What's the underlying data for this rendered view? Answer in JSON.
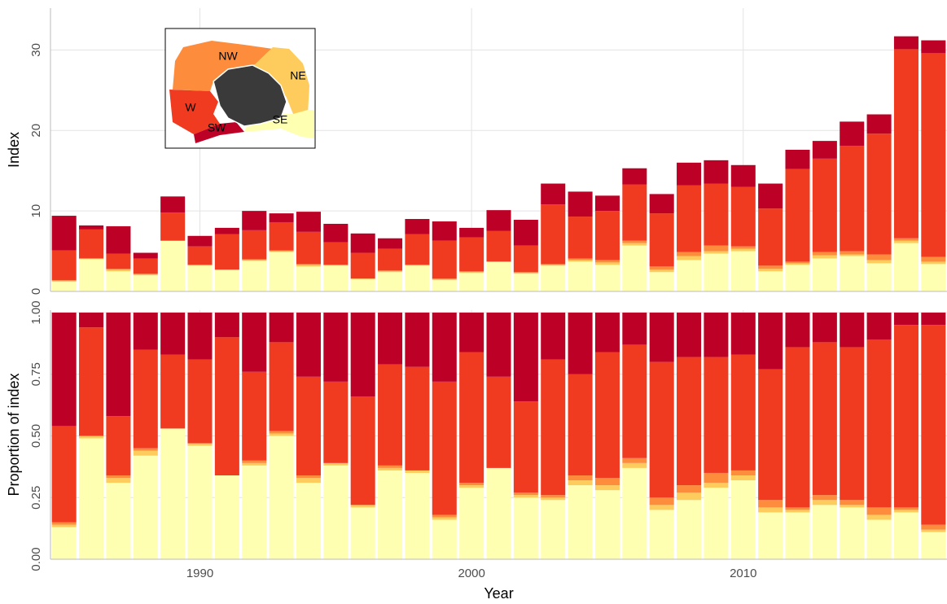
{
  "chart_data": [
    {
      "type": "bar",
      "stacked": true,
      "ylabel": "Index",
      "x": [
        1985,
        1986,
        1987,
        1988,
        1989,
        1990,
        1991,
        1992,
        1993,
        1994,
        1995,
        1996,
        1997,
        1998,
        1999,
        2000,
        2001,
        2002,
        2003,
        2004,
        2005,
        2006,
        2007,
        2008,
        2009,
        2010,
        2011,
        2012,
        2013,
        2014,
        2015,
        2016,
        2017
      ],
      "xlim": [
        1984.5,
        2017.5
      ],
      "ylim": [
        0,
        35.2
      ],
      "yticks": [
        0,
        10,
        20,
        30
      ],
      "grid": true,
      "series": [
        {
          "name": "SE",
          "color": "#ffffb2",
          "values": [
            1.2,
            4.0,
            2.5,
            2.0,
            6.3,
            3.2,
            2.7,
            3.8,
            4.9,
            3.1,
            3.2,
            1.5,
            2.4,
            3.2,
            1.4,
            2.3,
            3.7,
            2.2,
            3.2,
            3.7,
            3.3,
            5.7,
            2.4,
            3.9,
            4.7,
            5.0,
            2.5,
            3.3,
            4.1,
            4.4,
            3.5,
            6.0,
            3.4
          ]
        },
        {
          "name": "NE",
          "color": "#fecc5c",
          "values": [
            0.1,
            0.1,
            0.2,
            0.1,
            0,
            0.1,
            0,
            0.1,
            0.1,
            0.2,
            0.1,
            0.1,
            0.1,
            0.1,
            0.1,
            0.1,
            0,
            0.1,
            0.1,
            0.2,
            0.3,
            0.3,
            0.3,
            0.5,
            0.3,
            0.3,
            0.3,
            0.2,
            0.4,
            0.2,
            0.4,
            0.3,
            0.3
          ]
        },
        {
          "name": "NW",
          "color": "#fd8d3c",
          "values": [
            0.1,
            0,
            0.1,
            0.1,
            0,
            0,
            0,
            0.1,
            0.1,
            0.1,
            0,
            0,
            0.1,
            0,
            0.1,
            0.1,
            0,
            0.1,
            0.1,
            0.2,
            0.3,
            0.3,
            0.4,
            0.5,
            0.7,
            0.3,
            0.4,
            0.2,
            0.4,
            0.4,
            0.7,
            0.3,
            0.6
          ]
        },
        {
          "name": "W",
          "color": "#f03b20",
          "values": [
            3.7,
            3.6,
            1.9,
            1.9,
            3.5,
            2.3,
            4.4,
            3.6,
            3.5,
            4.0,
            2.8,
            3.2,
            2.7,
            3.8,
            4.7,
            4.2,
            3.8,
            3.3,
            7.4,
            5.2,
            6.1,
            7.0,
            6.6,
            8.3,
            7.7,
            7.4,
            7.1,
            11.5,
            11.6,
            13.1,
            15.0,
            23.5,
            25.3
          ]
        },
        {
          "name": "SW",
          "color": "#bd0026",
          "values": [
            4.3,
            0.5,
            3.4,
            0.7,
            2.0,
            1.3,
            0.8,
            2.4,
            1.1,
            2.5,
            2.3,
            2.4,
            1.3,
            1.9,
            2.4,
            1.2,
            2.6,
            3.2,
            2.6,
            3.1,
            1.9,
            2.0,
            2.4,
            2.8,
            2.9,
            2.7,
            3.1,
            2.4,
            2.2,
            3.0,
            2.4,
            1.6,
            1.6
          ]
        }
      ]
    },
    {
      "type": "bar",
      "stacked": true,
      "ylabel": "Proportion of index",
      "xlabel": "Year",
      "x": [
        1985,
        1986,
        1987,
        1988,
        1989,
        1990,
        1991,
        1992,
        1993,
        1994,
        1995,
        1996,
        1997,
        1998,
        1999,
        2000,
        2001,
        2002,
        2003,
        2004,
        2005,
        2006,
        2007,
        2008,
        2009,
        2010,
        2011,
        2012,
        2013,
        2014,
        2015,
        2016,
        2017
      ],
      "xlim": [
        1984.5,
        2017.5
      ],
      "xticks": [
        1990,
        2000,
        2010
      ],
      "ylim": [
        0,
        1.01
      ],
      "yticks": [
        {
          "value": 0,
          "label": "0.00"
        },
        {
          "value": 0.25,
          "label": "0.25"
        },
        {
          "value": 0.5,
          "label": "0.50"
        },
        {
          "value": 0.75,
          "label": "0.75"
        },
        {
          "value": 1,
          "label": "1.00"
        }
      ],
      "grid": true,
      "series": [
        {
          "color": "#ffffb2",
          "values": [
            0.13,
            0.49,
            0.31,
            0.42,
            0.53,
            0.46,
            0.34,
            0.38,
            0.5,
            0.31,
            0.38,
            0.21,
            0.36,
            0.35,
            0.16,
            0.29,
            0.37,
            0.25,
            0.24,
            0.3,
            0.28,
            0.37,
            0.2,
            0.24,
            0.29,
            0.32,
            0.19,
            0.19,
            0.22,
            0.21,
            0.16,
            0.19,
            0.11
          ]
        },
        {
          "color": "#fecc5c",
          "values": [
            0.01,
            0.01,
            0.02,
            0.02,
            0,
            0.01,
            0,
            0.01,
            0.01,
            0.02,
            0.01,
            0.01,
            0.01,
            0.01,
            0.01,
            0.01,
            0,
            0.01,
            0.01,
            0.02,
            0.02,
            0.02,
            0.02,
            0.03,
            0.02,
            0.02,
            0.02,
            0.01,
            0.02,
            0.01,
            0.02,
            0.01,
            0.01
          ]
        },
        {
          "color": "#fd8d3c",
          "values": [
            0.01,
            0,
            0.01,
            0.01,
            0,
            0,
            0,
            0.01,
            0.01,
            0.01,
            0,
            0,
            0.01,
            0,
            0.01,
            0.01,
            0,
            0.01,
            0.01,
            0.02,
            0.03,
            0.02,
            0.03,
            0.03,
            0.04,
            0.02,
            0.03,
            0.01,
            0.02,
            0.02,
            0.03,
            0.01,
            0.02
          ]
        },
        {
          "color": "#f03b20",
          "values": [
            0.39,
            0.44,
            0.24,
            0.4,
            0.3,
            0.34,
            0.56,
            0.36,
            0.36,
            0.4,
            0.33,
            0.44,
            0.41,
            0.42,
            0.54,
            0.53,
            0.37,
            0.37,
            0.55,
            0.41,
            0.51,
            0.46,
            0.55,
            0.52,
            0.47,
            0.47,
            0.53,
            0.65,
            0.62,
            0.62,
            0.68,
            0.74,
            0.81
          ]
        },
        {
          "color": "#bd0026",
          "values": [
            0.46,
            0.06,
            0.42,
            0.15,
            0.17,
            0.19,
            0.1,
            0.24,
            0.12,
            0.26,
            0.28,
            0.34,
            0.21,
            0.22,
            0.28,
            0.16,
            0.26,
            0.36,
            0.19,
            0.25,
            0.16,
            0.13,
            0.2,
            0.18,
            0.18,
            0.17,
            0.23,
            0.14,
            0.12,
            0.14,
            0.11,
            0.05,
            0.05
          ]
        }
      ]
    }
  ]
}
